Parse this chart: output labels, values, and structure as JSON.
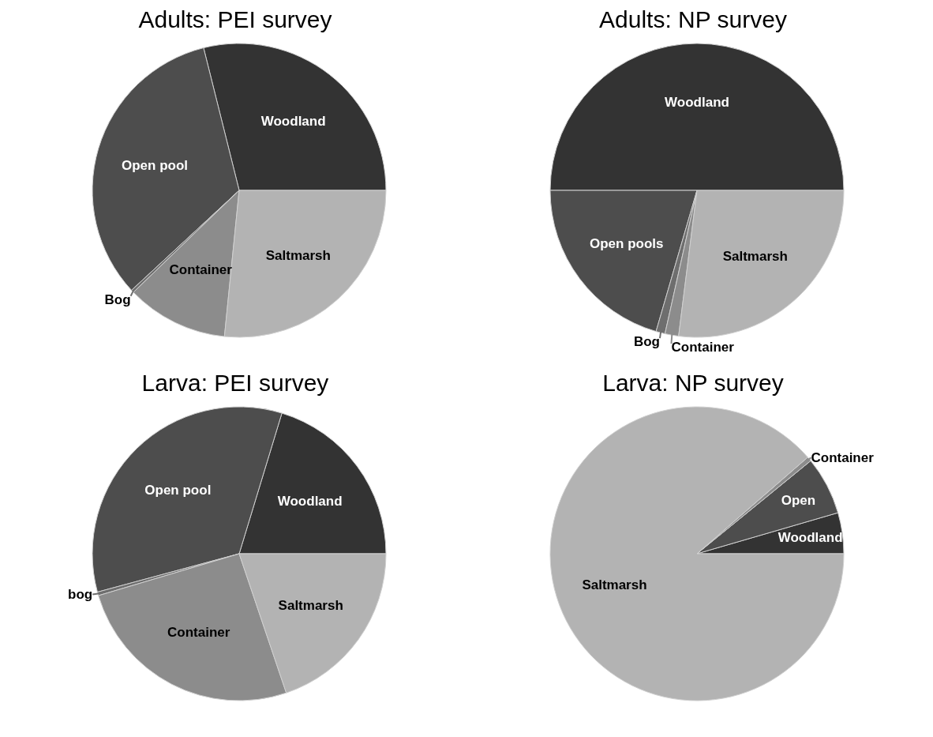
{
  "chart_data": [
    {
      "type": "pie",
      "title": "Adults: PEI survey",
      "categories": [
        "Woodland",
        "Open pool",
        "Bog",
        "Container",
        "Saltmarsh"
      ],
      "values": [
        28.9,
        33,
        0.3,
        11.2,
        26.6
      ],
      "colors": [
        "#333333",
        "#4d4d4d",
        "#6e6e6e",
        "#8c8c8c",
        "#b3b3b3"
      ]
    },
    {
      "type": "pie",
      "title": "Adults: NP survey",
      "categories": [
        "Woodland",
        "Open pools",
        "Bog",
        "Container",
        "Saltmarsh"
      ],
      "values": [
        50,
        20.5,
        1,
        1.5,
        27
      ],
      "colors": [
        "#333333",
        "#4d4d4d",
        "#6e6e6e",
        "#8c8c8c",
        "#b3b3b3"
      ]
    },
    {
      "type": "pie",
      "title": "Larva: PEI survey",
      "categories": [
        "Woodland",
        "Open pool",
        "bog",
        "Container",
        "Saltmarsh"
      ],
      "values": [
        20.3,
        33.9,
        0.4,
        25.6,
        19.8
      ],
      "colors": [
        "#333333",
        "#4d4d4d",
        "#6e6e6e",
        "#8c8c8c",
        "#b3b3b3"
      ]
    },
    {
      "type": "pie",
      "title": "Larva: NP survey",
      "categories": [
        "Woodland",
        "Open",
        "Container",
        "Saltmarsh"
      ],
      "values": [
        4.5,
        6.4,
        0.5,
        88.6
      ],
      "colors": [
        "#333333",
        "#4d4d4d",
        "#8c8c8c",
        "#b3b3b3"
      ]
    }
  ]
}
